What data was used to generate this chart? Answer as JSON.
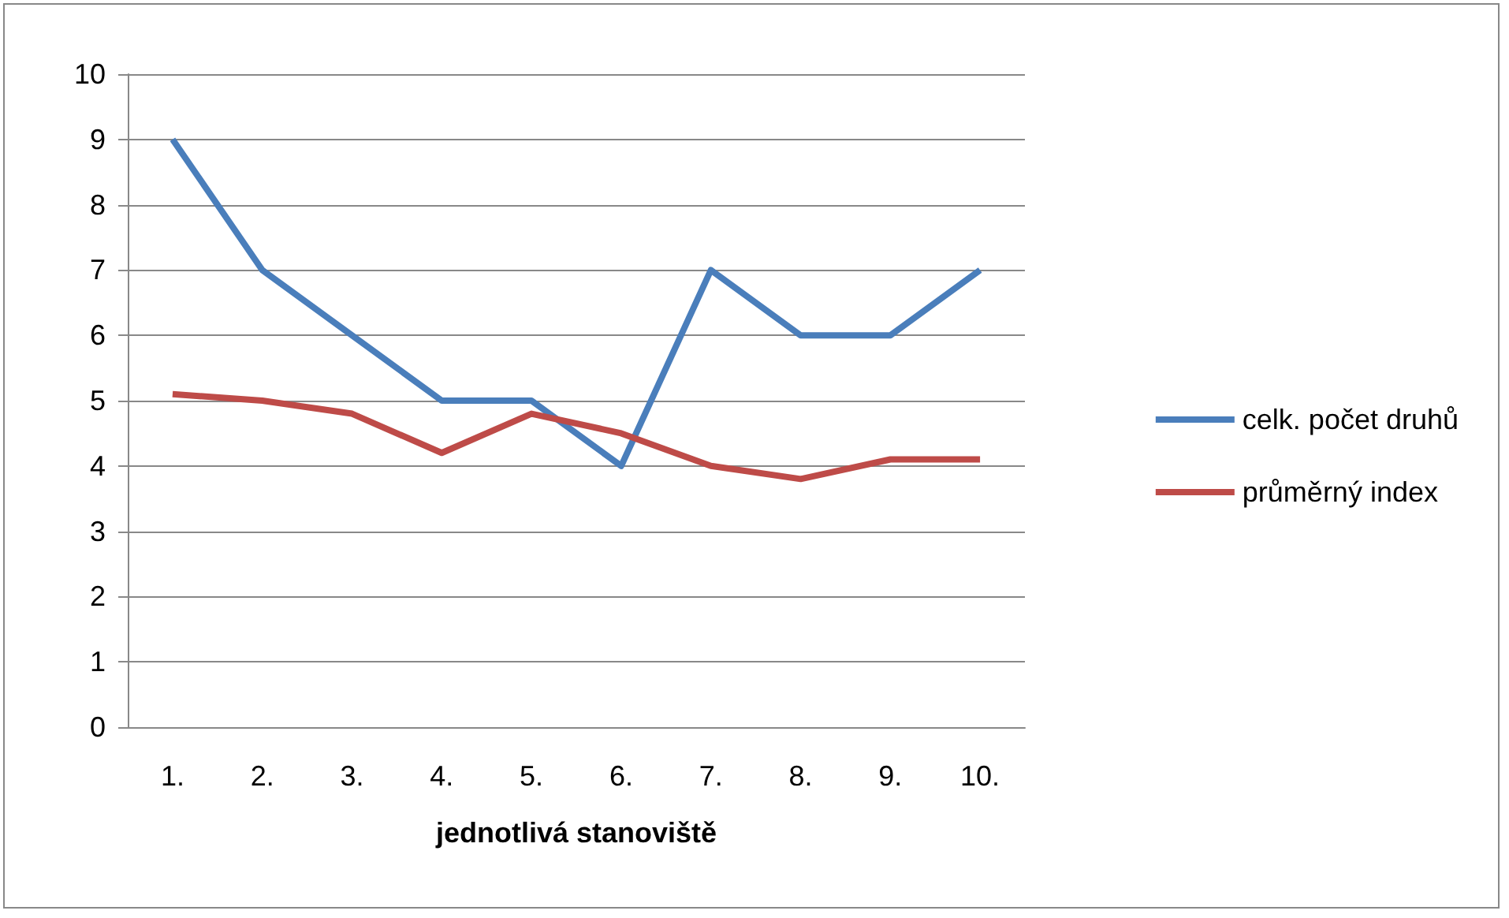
{
  "chart_data": {
    "type": "line",
    "xlabel": "jednotlivá stanoviště",
    "categories": [
      "1.",
      "2.",
      "3.",
      "4.",
      "5.",
      "6.",
      "7.",
      "8.",
      "9.",
      "10."
    ],
    "series": [
      {
        "name": "celk. počet druhů",
        "color": "#4a7ebb",
        "values": [
          9,
          7,
          6,
          5,
          5,
          4,
          7,
          6,
          6,
          7
        ]
      },
      {
        "name": "průměrný index",
        "color": "#be4b48",
        "values": [
          5.1,
          5.0,
          4.8,
          4.2,
          4.8,
          4.5,
          4.0,
          3.8,
          4.1,
          4.1
        ]
      }
    ],
    "ylim": [
      0,
      10
    ],
    "yticks": [
      0,
      1,
      2,
      3,
      4,
      5,
      6,
      7,
      8,
      9,
      10
    ],
    "grid": "y",
    "legend": "right",
    "marker": "none",
    "line_style": "solid"
  }
}
